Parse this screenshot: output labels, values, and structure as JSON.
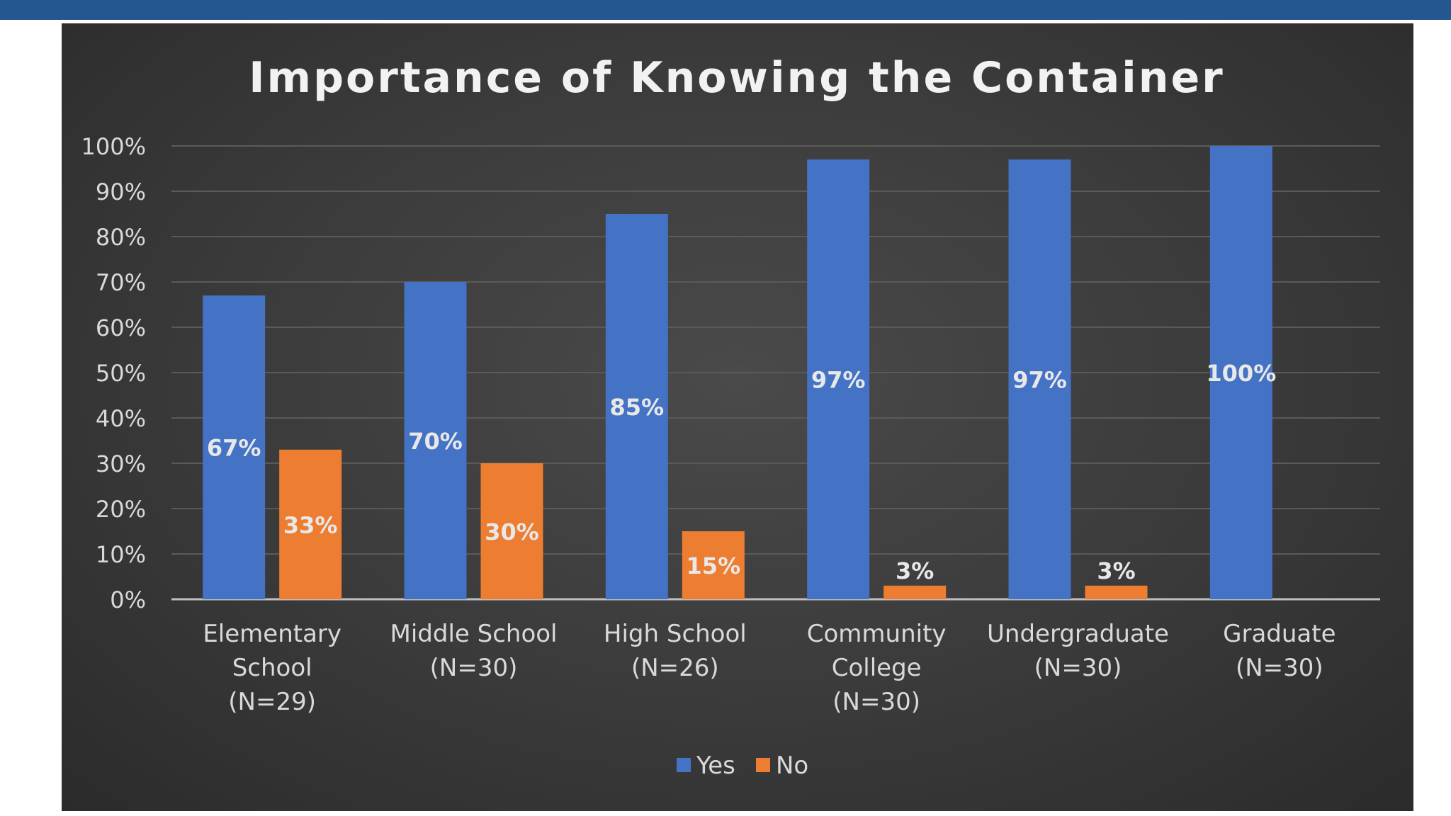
{
  "colors": {
    "yes": "#4472c4",
    "no": "#ed7d31",
    "grid": "#5a5a5a",
    "axis": "#bfbfbf",
    "band": "#24578f"
  },
  "chart_data": {
    "type": "bar",
    "title": "Importance of Knowing the Container",
    "categories": [
      [
        "Elementary",
        "School",
        "(N=29)"
      ],
      [
        "Middle School",
        "(N=30)"
      ],
      [
        "High School",
        "(N=26)"
      ],
      [
        "Community",
        "College",
        "(N=30)"
      ],
      [
        "Undergraduate",
        "(N=30)"
      ],
      [
        "Graduate",
        "(N=30)"
      ]
    ],
    "series": [
      {
        "name": "Yes",
        "values": [
          67,
          70,
          85,
          97,
          97,
          100
        ],
        "labels": [
          "67%",
          "70%",
          "85%",
          "97%",
          "97%",
          "100%"
        ]
      },
      {
        "name": "No",
        "values": [
          33,
          30,
          15,
          3,
          3,
          null
        ],
        "labels": [
          "33%",
          "30%",
          "15%",
          "3%",
          "3%",
          null
        ]
      }
    ],
    "ylim": [
      0,
      100
    ],
    "yticks": [
      "0%",
      "10%",
      "20%",
      "30%",
      "40%",
      "50%",
      "60%",
      "70%",
      "80%",
      "90%",
      "100%"
    ],
    "grid": true,
    "legend": "bottom-center"
  }
}
